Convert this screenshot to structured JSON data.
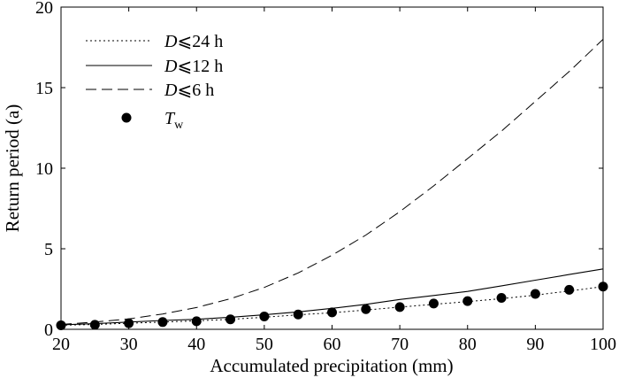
{
  "chart_data": {
    "type": "line",
    "xlabel": "Accumulated precipitation (mm)",
    "ylabel": "Return period (a)",
    "xlim": [
      20,
      100
    ],
    "ylim": [
      0,
      20
    ],
    "xticks": [
      20,
      30,
      40,
      50,
      60,
      70,
      80,
      90,
      100
    ],
    "yticks": [
      0,
      5,
      10,
      15,
      20
    ],
    "grid": false,
    "legend_position": "top-left",
    "series": [
      {
        "name": "D⩽24 h",
        "legend_symbol": "D",
        "legend_rest": "⩽24 h",
        "style": "dotted",
        "x": [
          20,
          25,
          30,
          35,
          40,
          45,
          50,
          55,
          60,
          65,
          70,
          75,
          80,
          85,
          90,
          95,
          100
        ],
        "y": [
          0.25,
          0.3,
          0.38,
          0.45,
          0.53,
          0.62,
          0.75,
          0.9,
          1.03,
          1.2,
          1.38,
          1.55,
          1.72,
          1.9,
          2.12,
          2.38,
          2.65
        ]
      },
      {
        "name": "D⩽12 h",
        "legend_symbol": "D",
        "legend_rest": "⩽12 h",
        "style": "solid",
        "x": [
          20,
          25,
          30,
          35,
          40,
          45,
          50,
          55,
          60,
          65,
          70,
          75,
          80,
          85,
          90,
          95,
          100
        ],
        "y": [
          0.28,
          0.35,
          0.45,
          0.55,
          0.62,
          0.75,
          0.9,
          1.08,
          1.3,
          1.55,
          1.85,
          2.1,
          2.35,
          2.7,
          3.05,
          3.4,
          3.75
        ]
      },
      {
        "name": "D⩽6 h",
        "legend_symbol": "D",
        "legend_rest": "⩽6 h",
        "style": "dashed",
        "x": [
          20,
          25,
          30,
          35,
          40,
          45,
          50,
          55,
          60,
          65,
          70,
          75,
          80,
          85,
          90,
          95,
          100
        ],
        "y": [
          0.3,
          0.45,
          0.65,
          0.95,
          1.35,
          1.9,
          2.6,
          3.5,
          4.6,
          5.85,
          7.3,
          8.9,
          10.6,
          12.3,
          14.15,
          16.0,
          18.0
        ]
      },
      {
        "name": "Tw",
        "legend_symbol": "T",
        "legend_sub": "w",
        "style": "markers",
        "x": [
          20,
          25,
          30,
          35,
          40,
          45,
          50,
          55,
          60,
          65,
          70,
          75,
          80,
          85,
          90,
          95,
          100
        ],
        "y": [
          0.25,
          0.28,
          0.38,
          0.45,
          0.5,
          0.62,
          0.8,
          0.92,
          1.05,
          1.25,
          1.38,
          1.6,
          1.75,
          1.95,
          2.2,
          2.45,
          2.65
        ]
      }
    ]
  }
}
